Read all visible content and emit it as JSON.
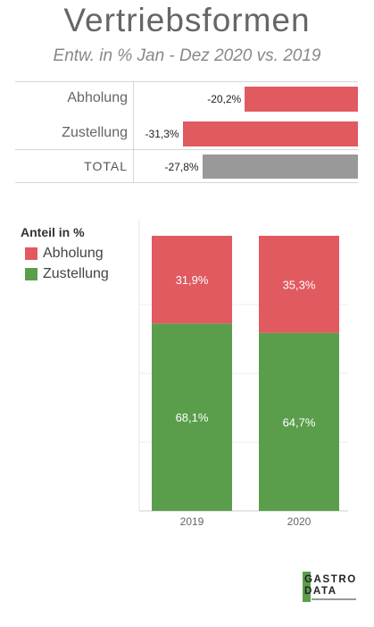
{
  "header": {
    "title": "Vertriebsformen",
    "subtitle": "Entw. in % Jan - Dez 2020 vs. 2019"
  },
  "logo": {
    "line1": "ASTRO",
    "line2": "ATA",
    "letter1": "G",
    "letter2": "D"
  },
  "chart_data": [
    {
      "type": "bar",
      "orientation": "horizontal",
      "categories": [
        "Abholung",
        "Zustellung",
        "TOTAL"
      ],
      "values": [
        -20.2,
        -31.3,
        -27.8
      ],
      "value_labels": [
        "-20,2%",
        "-31,3%",
        "-27,8%"
      ],
      "colors": [
        "#e05a60",
        "#e05a60",
        "#999999"
      ],
      "xlim": [
        -40,
        0
      ]
    },
    {
      "type": "bar",
      "stacked": true,
      "legend_title": "Anteil in %",
      "legend_placement": "left",
      "categories": [
        "2019",
        "2020"
      ],
      "ylim": [
        0,
        100
      ],
      "grid": true,
      "series": [
        {
          "name": "Abholung",
          "color": "#e05a60",
          "values": [
            31.9,
            35.3
          ],
          "labels": [
            "31,9%",
            "35,3%"
          ]
        },
        {
          "name": "Zustellung",
          "color": "#5a9e4b",
          "values": [
            68.1,
            64.7
          ],
          "labels": [
            "68,1%",
            "64,7%"
          ]
        }
      ]
    }
  ]
}
